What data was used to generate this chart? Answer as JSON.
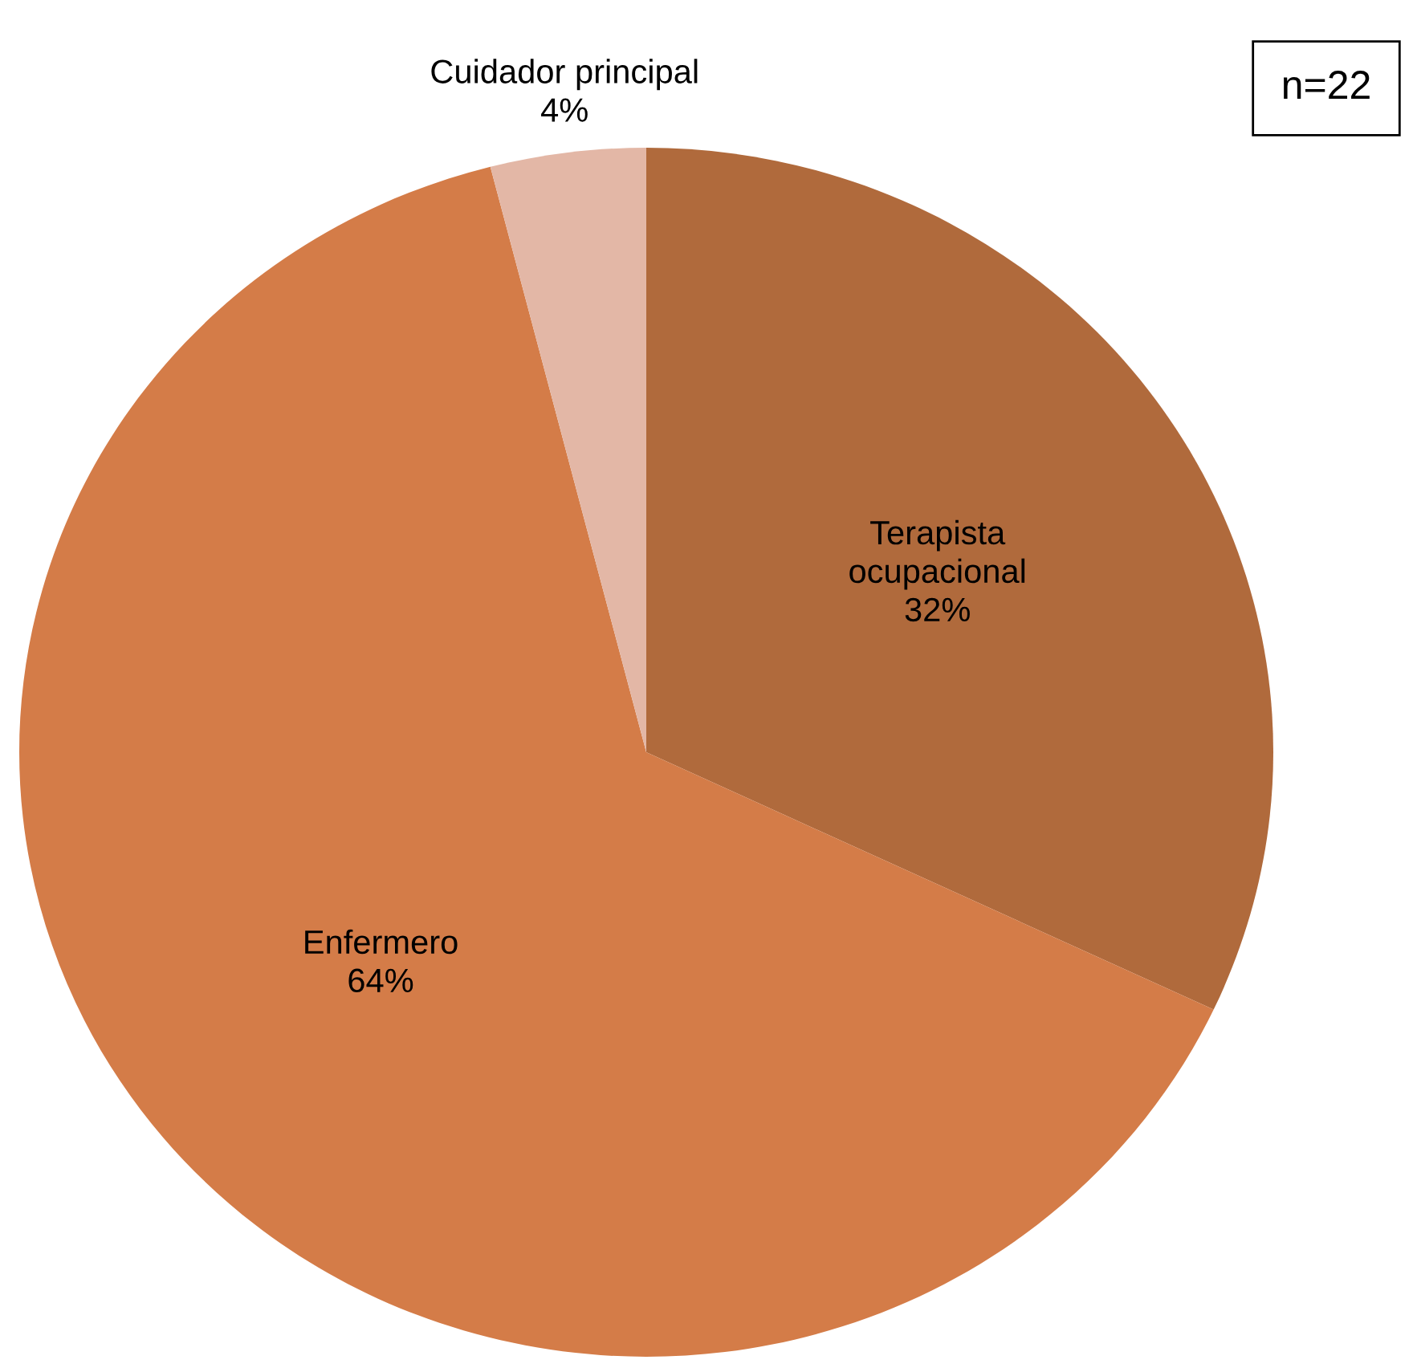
{
  "chart_data": {
    "type": "pie",
    "categories": [
      "Terapista ocupacional",
      "Enfermero",
      "Cuidador principal"
    ],
    "values": [
      32,
      64,
      4
    ],
    "value_labels": [
      "32%",
      "64%",
      "4%"
    ],
    "colors": [
      "#b06a3c",
      "#d47c48",
      "#e3b7a6"
    ],
    "annotations": [
      "n=22"
    ]
  }
}
